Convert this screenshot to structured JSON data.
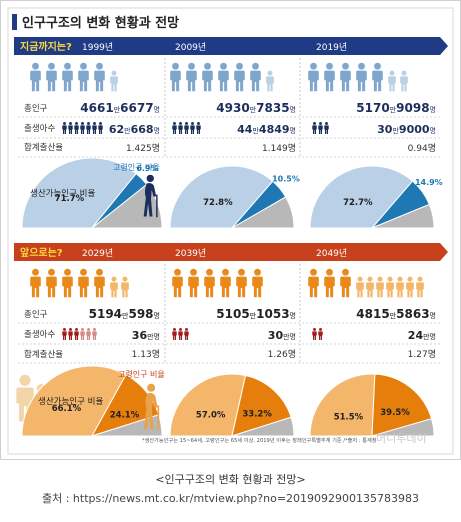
{
  "header": {
    "title": "인구구조의 변화 현황과 전망"
  },
  "past": {
    "label": "지금까지는?",
    "columns": [
      {
        "year": "1999년",
        "pop_big": "4661",
        "pop_mid": "만",
        "pop_big2": "6677",
        "pop_unit": "명",
        "births_big": "62",
        "births_mid": "만",
        "births_big2": "668",
        "births_unit": "명",
        "tfr": "1.425명",
        "pie_labels": {
          "working": "생산가능인구 비율",
          "elderly": "고령인구 비율"
        },
        "pie_work_text": "71.7%",
        "pie_elder_text": "6.9%"
      },
      {
        "year": "2009년",
        "pop_big": "4930",
        "pop_mid": "만",
        "pop_big2": "7835",
        "pop_unit": "명",
        "births_big": "44",
        "births_mid": "만",
        "births_big2": "4849",
        "births_unit": "명",
        "tfr": "1.149명",
        "pie_work_text": "72.8%",
        "pie_elder_text": "10.5%"
      },
      {
        "year": "2019년",
        "pop_big": "5170",
        "pop_mid": "만",
        "pop_big2": "9098",
        "pop_unit": "명",
        "births_big": "30",
        "births_mid": "만",
        "births_big2": "9000",
        "births_unit": "명",
        "tfr": "0.94명",
        "pie_work_text": "72.7%",
        "pie_elder_text": "14.9%"
      }
    ]
  },
  "future": {
    "label": "앞으로는?",
    "columns": [
      {
        "year": "2029년",
        "pop_big": "5194",
        "pop_mid": "만",
        "pop_big2": "598",
        "pop_unit": "명",
        "births_big": "36",
        "births_unit": "만명",
        "tfr": "1.13명",
        "pie_labels": {
          "working": "생산가능인구 비율",
          "elderly": "고령인구 비율"
        },
        "pie_work_text": "66.1%",
        "pie_elder_text": "24.1%"
      },
      {
        "year": "2039년",
        "pop_big": "5105",
        "pop_mid": "만",
        "pop_big2": "1053",
        "pop_unit": "명",
        "births_big": "30",
        "births_unit": "만명",
        "tfr": "1.26명",
        "pie_work_text": "57.0%",
        "pie_elder_text": "33.2%"
      },
      {
        "year": "2049년",
        "pop_big": "4815",
        "pop_mid": "만",
        "pop_big2": "5863",
        "pop_unit": "명",
        "births_big": "24",
        "births_unit": "만명",
        "tfr": "1.27명",
        "pie_work_text": "51.5%",
        "pie_elder_text": "39.5%"
      }
    ]
  },
  "row_labels": {
    "pop": "총인구",
    "births": "출생아수",
    "tfr": "합계출산율"
  },
  "footnote": "*생산가능인구는 15~64세, 고령인구는 65세 이상. 2019년 이후는 장래인구특별추계 기준 /*출처 : 통계청",
  "watermark": "머니투데이",
  "caption": "<인구구조의 변화 현황과 전망>",
  "source": "출처 : https://news.mt.co.kr/mtview.php?no=2019092900135783983",
  "colors": {
    "blue_banner": "#1f3b86",
    "red_banner": "#c6411c",
    "blue_person": "#7fa6cc",
    "blue_light": "#b9d0e6",
    "blue_wedge": "#1f77b4",
    "grey_wedge": "#b8b8b8",
    "orange_person": "#e9891a",
    "orange_light": "#f4b66a",
    "orange_wedge": "#e67e0c",
    "dark_red": "#a11d1d",
    "dark_navy": "#1c2e5c"
  },
  "chart_data": [
    {
      "type": "pie",
      "title": "지금까지는?",
      "categories": [
        "1999년",
        "2009년",
        "2019년"
      ],
      "series": [
        {
          "name": "생산가능인구 비율",
          "values": [
            71.7,
            72.8,
            72.7
          ]
        },
        {
          "name": "고령인구 비율",
          "values": [
            6.9,
            10.5,
            14.9
          ]
        }
      ],
      "table": {
        "총인구": [
          "4661만6677명",
          "4930만7835명",
          "5170만9098명"
        ],
        "출생아수": [
          "62만668명",
          "44만4849명",
          "30만9000명"
        ],
        "합계출산율": [
          1.425,
          1.149,
          0.94
        ]
      }
    },
    {
      "type": "pie",
      "title": "앞으로는?",
      "categories": [
        "2029년",
        "2039년",
        "2049년"
      ],
      "series": [
        {
          "name": "생산가능인구 비율",
          "values": [
            66.1,
            57.0,
            51.5
          ]
        },
        {
          "name": "고령인구 비율",
          "values": [
            24.1,
            33.2,
            39.5
          ]
        }
      ],
      "table": {
        "총인구": [
          "5194만598명",
          "5105만1053명",
          "4815만5863명"
        ],
        "출생아수": [
          "36만명",
          "30만명",
          "24만명"
        ],
        "합계출산율": [
          1.13,
          1.26,
          1.27
        ]
      }
    }
  ]
}
